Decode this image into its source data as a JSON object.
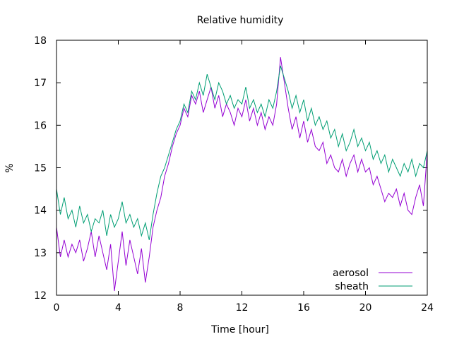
{
  "chart_data": {
    "type": "line",
    "title": "Relative humidity",
    "xlabel": "Time [hour]",
    "ylabel": "%",
    "xlim": [
      0,
      24
    ],
    "ylim": [
      12,
      18
    ],
    "xticks": [
      0,
      4,
      8,
      12,
      16,
      20,
      24
    ],
    "yticks": [
      12,
      13,
      14,
      15,
      16,
      17,
      18
    ],
    "grid": false,
    "legend_position": "bottom-right",
    "series": [
      {
        "name": "aerosol",
        "color": "#9400d3",
        "x": [
          0,
          0.25,
          0.5,
          0.75,
          1,
          1.25,
          1.5,
          1.75,
          2,
          2.25,
          2.5,
          2.75,
          3,
          3.25,
          3.5,
          3.75,
          4,
          4.25,
          4.5,
          4.75,
          5,
          5.25,
          5.5,
          5.75,
          6,
          6.25,
          6.5,
          6.75,
          7,
          7.25,
          7.5,
          7.75,
          8,
          8.25,
          8.5,
          8.75,
          9,
          9.25,
          9.5,
          9.75,
          10,
          10.25,
          10.5,
          10.75,
          11,
          11.25,
          11.5,
          11.75,
          12,
          12.25,
          12.5,
          12.75,
          13,
          13.25,
          13.5,
          13.75,
          14,
          14.25,
          14.5,
          14.75,
          15,
          15.25,
          15.5,
          15.75,
          16,
          16.25,
          16.5,
          16.75,
          17,
          17.25,
          17.5,
          17.75,
          18,
          18.25,
          18.5,
          18.75,
          19,
          19.25,
          19.5,
          19.75,
          20,
          20.25,
          20.5,
          20.75,
          21,
          21.25,
          21.5,
          21.75,
          22,
          22.25,
          22.5,
          22.75,
          23,
          23.25,
          23.5,
          23.75,
          24
        ],
        "values": [
          13.6,
          12.9,
          13.3,
          12.9,
          13.2,
          13.0,
          13.3,
          12.8,
          13.1,
          13.5,
          12.9,
          13.4,
          13.0,
          12.6,
          13.2,
          12.1,
          12.8,
          13.5,
          12.7,
          13.3,
          12.9,
          12.5,
          13.1,
          12.3,
          12.9,
          13.6,
          14.0,
          14.3,
          14.8,
          15.1,
          15.5,
          15.8,
          16.0,
          16.4,
          16.2,
          16.7,
          16.5,
          16.8,
          16.3,
          16.6,
          16.9,
          16.4,
          16.7,
          16.2,
          16.5,
          16.3,
          16.0,
          16.4,
          16.2,
          16.6,
          16.1,
          16.4,
          16.0,
          16.3,
          15.9,
          16.2,
          16.0,
          16.5,
          17.6,
          17.0,
          16.4,
          15.9,
          16.2,
          15.7,
          16.1,
          15.6,
          15.9,
          15.5,
          15.4,
          15.6,
          15.1,
          15.3,
          15.0,
          14.9,
          15.2,
          14.8,
          15.1,
          15.3,
          14.9,
          15.2,
          14.9,
          15.0,
          14.6,
          14.8,
          14.5,
          14.2,
          14.4,
          14.3,
          14.5,
          14.1,
          14.4,
          14.0,
          13.9,
          14.3,
          14.6,
          14.1,
          15.4
        ]
      },
      {
        "name": "sheath",
        "color": "#009e73",
        "x": [
          0,
          0.25,
          0.5,
          0.75,
          1,
          1.25,
          1.5,
          1.75,
          2,
          2.25,
          2.5,
          2.75,
          3,
          3.25,
          3.5,
          3.75,
          4,
          4.25,
          4.5,
          4.75,
          5,
          5.25,
          5.5,
          5.75,
          6,
          6.25,
          6.5,
          6.75,
          7,
          7.25,
          7.5,
          7.75,
          8,
          8.25,
          8.5,
          8.75,
          9,
          9.25,
          9.5,
          9.75,
          10,
          10.25,
          10.5,
          10.75,
          11,
          11.25,
          11.5,
          11.75,
          12,
          12.25,
          12.5,
          12.75,
          13,
          13.25,
          13.5,
          13.75,
          14,
          14.25,
          14.5,
          14.75,
          15,
          15.25,
          15.5,
          15.75,
          16,
          16.25,
          16.5,
          16.75,
          17,
          17.25,
          17.5,
          17.75,
          18,
          18.25,
          18.5,
          18.75,
          19,
          19.25,
          19.5,
          19.75,
          20,
          20.25,
          20.5,
          20.75,
          21,
          21.25,
          21.5,
          21.75,
          22,
          22.25,
          22.5,
          22.75,
          23,
          23.25,
          23.5,
          23.75,
          24
        ],
        "values": [
          14.5,
          13.9,
          14.3,
          13.8,
          14.0,
          13.6,
          14.1,
          13.7,
          13.9,
          13.5,
          13.8,
          13.7,
          14.0,
          13.4,
          13.9,
          13.6,
          13.8,
          14.2,
          13.7,
          13.9,
          13.6,
          13.8,
          13.4,
          13.7,
          13.3,
          13.9,
          14.4,
          14.8,
          15.0,
          15.3,
          15.6,
          15.9,
          16.1,
          16.5,
          16.3,
          16.8,
          16.6,
          17.0,
          16.7,
          17.2,
          16.9,
          16.6,
          17.0,
          16.8,
          16.5,
          16.7,
          16.4,
          16.6,
          16.5,
          16.9,
          16.4,
          16.6,
          16.3,
          16.5,
          16.2,
          16.6,
          16.4,
          16.8,
          17.4,
          17.1,
          16.8,
          16.4,
          16.7,
          16.3,
          16.6,
          16.1,
          16.4,
          16.0,
          16.2,
          15.9,
          16.1,
          15.7,
          15.9,
          15.5,
          15.8,
          15.4,
          15.6,
          15.9,
          15.5,
          15.7,
          15.4,
          15.6,
          15.2,
          15.4,
          15.1,
          15.3,
          14.9,
          15.2,
          15.0,
          14.8,
          15.1,
          14.9,
          15.2,
          14.8,
          15.1,
          15.0,
          15.4
        ]
      }
    ]
  }
}
